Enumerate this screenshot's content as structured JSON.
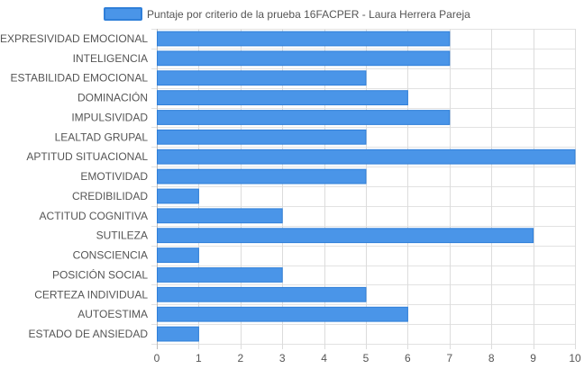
{
  "chart_data": {
    "type": "bar",
    "orientation": "horizontal",
    "legend_position": "top",
    "grid": true,
    "xlim": [
      0,
      10
    ],
    "x_ticks": [
      "0",
      "1",
      "2",
      "3",
      "4",
      "5",
      "6",
      "7",
      "8",
      "9",
      "10"
    ],
    "categories": [
      "EXPRESIVIDAD EMOCIONAL",
      "INTELIGENCIA",
      "ESTABILIDAD EMOCIONAL",
      "DOMINACIÓN",
      "IMPULSIVIDAD",
      "LEALTAD GRUPAL",
      "APTITUD SITUACIONAL",
      "EMOTIVIDAD",
      "CREDIBILIDAD",
      "ACTITUD COGNITIVA",
      "SUTILEZA",
      "CONSCIENCIA",
      "POSICIÓN SOCIAL",
      "CERTEZA INDIVIDUAL",
      "AUTOESTIMA",
      "ESTADO DE ANSIEDAD"
    ],
    "series": [
      {
        "name": "Puntaje por criterio de la prueba 16FACPER - Laura Herrera Pareja",
        "color": "#4a95e8",
        "border_color": "#2f7fd9",
        "values": [
          7,
          7,
          5,
          6,
          7,
          5,
          10,
          5,
          1,
          3,
          9,
          1,
          3,
          5,
          6,
          1
        ]
      }
    ]
  }
}
